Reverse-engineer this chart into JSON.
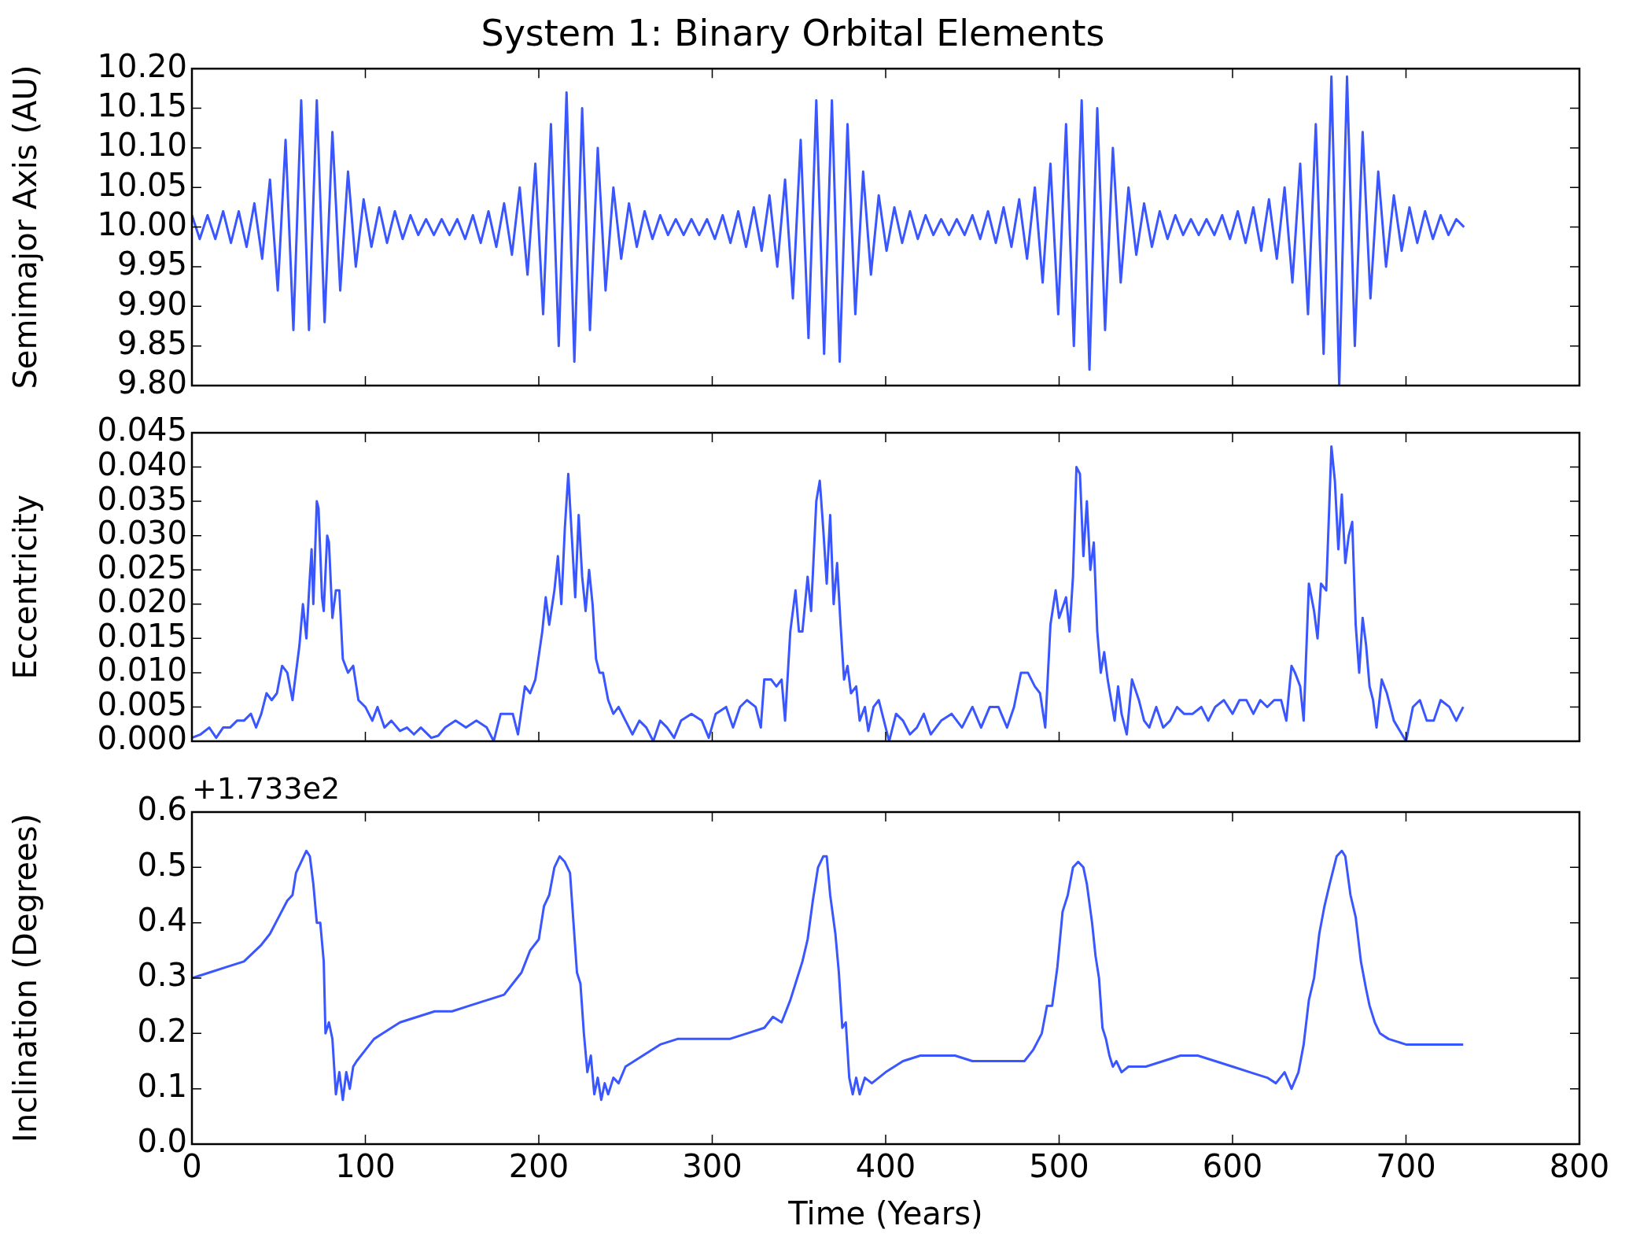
{
  "chart_data": [
    {
      "type": "line",
      "title": "System 1: Binary Orbital Elements",
      "ylabel": "Semimajor Axis (AU)",
      "color": "#3a56ff",
      "tick_labels": "y",
      "xlim": [
        0,
        800
      ],
      "xticks": [
        0,
        100,
        200,
        300,
        400,
        500,
        600,
        700,
        800
      ],
      "ylim": [
        9.8,
        10.2
      ],
      "yticks": [
        {
          "value": 9.8,
          "label": "9.80"
        },
        {
          "value": 9.85,
          "label": "9.85"
        },
        {
          "value": 9.9,
          "label": "9.90"
        },
        {
          "value": 9.95,
          "label": "9.95"
        },
        {
          "value": 10,
          "label": "10.00"
        },
        {
          "value": 10.05,
          "label": "10.05"
        },
        {
          "value": 10.1,
          "label": "10.10"
        },
        {
          "value": 10.15,
          "label": "10.15"
        },
        {
          "value": 10.2,
          "label": "10.20"
        }
      ],
      "x": [
        0,
        4.5,
        9,
        13.5,
        18,
        22.5,
        27,
        31.5,
        36,
        40.5,
        45,
        49.5,
        54,
        58.5,
        63,
        67.5,
        72,
        76.5,
        81,
        85.5,
        90,
        94.5,
        99,
        103.5,
        108,
        112.5,
        117,
        121.5,
        126,
        130.5,
        135,
        139.5,
        144,
        148.5,
        153,
        157.5,
        162,
        166.5,
        171,
        175.5,
        180,
        184.5,
        189,
        193.5,
        198,
        202.5,
        207,
        211.5,
        216,
        220.5,
        225,
        229.5,
        234,
        238.5,
        243,
        247.5,
        252,
        256.5,
        261,
        265.5,
        270,
        274.5,
        279,
        283.5,
        288,
        292.5,
        297,
        301.5,
        306,
        310.5,
        315,
        319.5,
        324,
        328.5,
        333,
        337.5,
        342,
        346.5,
        351,
        355.5,
        360,
        364.5,
        369,
        373.5,
        378,
        382.5,
        387,
        391.5,
        396,
        400.5,
        405,
        409.5,
        414,
        418.5,
        423,
        427.5,
        432,
        436.5,
        441,
        445.5,
        450,
        454.5,
        459,
        463.5,
        468,
        472.5,
        477,
        481.5,
        486,
        490.5,
        495,
        499.5,
        504,
        508.5,
        513,
        517.5,
        522,
        526.5,
        531,
        535.5,
        540,
        544.5,
        549,
        553.5,
        558,
        562.5,
        567,
        571.5,
        576,
        580.5,
        585,
        589.5,
        594,
        598.5,
        603,
        607.5,
        612,
        616.5,
        621,
        625.5,
        630,
        634.5,
        639,
        643.5,
        648,
        652.5,
        657,
        661.5,
        666,
        670.5,
        675,
        679.5,
        684,
        688.5,
        693,
        697.5,
        702,
        706.5,
        711,
        715.5,
        720,
        724.5,
        729,
        733.5
      ],
      "values": [
        10.015,
        9.985,
        10.015,
        9.985,
        10.02,
        9.98,
        10.02,
        9.975,
        10.03,
        9.96,
        10.06,
        9.92,
        10.11,
        9.87,
        10.16,
        9.87,
        10.16,
        9.88,
        10.12,
        9.92,
        10.07,
        9.95,
        10.035,
        9.975,
        10.025,
        9.98,
        10.02,
        9.985,
        10.015,
        9.99,
        10.01,
        9.99,
        10.01,
        9.99,
        10.01,
        9.985,
        10.015,
        9.98,
        10.02,
        9.975,
        10.03,
        9.965,
        10.05,
        9.94,
        10.08,
        9.89,
        10.13,
        9.85,
        10.17,
        9.83,
        10.15,
        9.87,
        10.1,
        9.92,
        10.05,
        9.96,
        10.03,
        9.975,
        10.02,
        9.985,
        10.015,
        9.99,
        10.01,
        9.99,
        10.01,
        9.99,
        10.01,
        9.985,
        10.015,
        9.98,
        10.02,
        9.975,
        10.025,
        9.97,
        10.04,
        9.95,
        10.06,
        9.91,
        10.11,
        9.86,
        10.16,
        9.84,
        10.16,
        9.83,
        10.13,
        9.89,
        10.07,
        9.94,
        10.04,
        9.97,
        10.025,
        9.98,
        10.02,
        9.985,
        10.015,
        9.99,
        10.01,
        9.99,
        10.01,
        9.99,
        10.015,
        9.985,
        10.02,
        9.98,
        10.025,
        9.975,
        10.035,
        9.96,
        10.05,
        9.93,
        10.08,
        9.89,
        10.13,
        9.85,
        10.16,
        9.82,
        10.15,
        9.87,
        10.1,
        9.93,
        10.05,
        9.965,
        10.03,
        9.975,
        10.02,
        9.985,
        10.015,
        9.99,
        10.01,
        9.99,
        10.01,
        9.99,
        10.015,
        9.985,
        10.02,
        9.98,
        10.025,
        9.97,
        10.035,
        9.96,
        10.05,
        9.93,
        10.08,
        9.89,
        10.13,
        9.84,
        10.19,
        9.8,
        10.19,
        9.85,
        10.12,
        9.91,
        10.07,
        9.95,
        10.04,
        9.97,
        10.025,
        9.98,
        10.02,
        9.985,
        10.015,
        9.99,
        10.01,
        10
      ]
    },
    {
      "type": "line",
      "ylabel": "Eccentricity",
      "color": "#3a56ff",
      "tick_labels": "y",
      "xlim": [
        0,
        800
      ],
      "xticks": [
        0,
        100,
        200,
        300,
        400,
        500,
        600,
        700,
        800
      ],
      "ylim": [
        0,
        0.045
      ],
      "yticks": [
        {
          "value": 0,
          "label": "0.000"
        },
        {
          "value": 0.005,
          "label": "0.005"
        },
        {
          "value": 0.01,
          "label": "0.010"
        },
        {
          "value": 0.015,
          "label": "0.015"
        },
        {
          "value": 0.02,
          "label": "0.020"
        },
        {
          "value": 0.025,
          "label": "0.025"
        },
        {
          "value": 0.03,
          "label": "0.030"
        },
        {
          "value": 0.035,
          "label": "0.035"
        },
        {
          "value": 0.04,
          "label": "0.040"
        },
        {
          "value": 0.045,
          "label": "0.045"
        }
      ],
      "x": [
        0,
        5,
        10,
        14,
        18,
        22,
        26,
        30,
        34,
        37,
        40,
        43,
        46,
        49,
        52,
        55,
        58,
        62,
        64,
        66,
        68,
        69,
        70,
        72,
        73,
        75,
        76,
        78,
        79,
        81,
        83,
        85,
        87,
        90,
        93,
        96,
        100,
        104,
        107,
        111,
        115,
        120,
        124,
        128,
        132,
        138,
        142,
        146,
        152,
        158,
        164,
        170,
        174,
        178,
        185,
        188,
        192,
        195,
        198,
        202,
        204,
        206,
        209,
        211,
        213,
        215,
        217,
        219,
        221,
        223,
        225,
        227,
        229,
        231,
        233,
        235,
        237,
        240,
        243,
        246,
        250,
        254,
        258,
        262,
        266,
        270,
        274,
        278,
        282,
        288,
        294,
        298,
        302,
        308,
        312,
        316,
        320,
        325,
        328,
        330,
        334,
        337,
        340,
        342,
        345,
        348,
        350,
        352,
        355,
        357,
        360,
        362,
        364,
        366,
        368,
        370,
        372,
        374,
        376,
        378,
        380,
        383,
        385,
        388,
        390,
        393,
        396,
        400,
        402,
        406,
        410,
        414,
        418,
        422,
        426,
        432,
        438,
        444,
        450,
        455,
        460,
        465,
        470,
        474,
        478,
        482,
        486,
        489,
        492,
        495,
        498,
        500,
        504,
        506,
        508,
        510,
        512,
        514,
        516,
        518,
        520,
        522,
        524,
        526,
        528,
        530,
        532,
        534,
        536,
        539,
        542,
        546,
        549,
        552,
        556,
        560,
        564,
        568,
        572,
        577,
        582,
        586,
        590,
        595,
        600,
        604,
        608,
        612,
        616,
        620,
        624,
        628,
        631,
        634,
        636,
        639,
        641,
        644,
        647,
        649,
        651,
        654,
        657,
        659,
        661,
        663,
        665,
        667,
        669,
        671,
        673,
        675,
        677,
        679,
        681,
        683,
        686,
        689,
        693,
        700,
        704,
        708,
        712,
        716,
        720,
        725,
        729,
        733
      ],
      "values": [
        0.0005,
        0.001,
        0.002,
        0.0005,
        0.002,
        0.002,
        0.003,
        0.003,
        0.004,
        0.002,
        0.004,
        0.007,
        0.006,
        0.007,
        0.011,
        0.01,
        0.006,
        0.014,
        0.02,
        0.015,
        0.024,
        0.028,
        0.02,
        0.035,
        0.034,
        0.021,
        0.019,
        0.03,
        0.029,
        0.018,
        0.022,
        0.022,
        0.012,
        0.01,
        0.011,
        0.006,
        0.005,
        0.003,
        0.005,
        0.002,
        0.003,
        0.0015,
        0.002,
        0.001,
        0.002,
        0.0005,
        0.0008,
        0.002,
        0.003,
        0.002,
        0.003,
        0.002,
        0,
        0.004,
        0.004,
        0.001,
        0.008,
        0.007,
        0.009,
        0.016,
        0.021,
        0.017,
        0.022,
        0.027,
        0.02,
        0.031,
        0.039,
        0.03,
        0.021,
        0.033,
        0.024,
        0.019,
        0.025,
        0.02,
        0.012,
        0.01,
        0.01,
        0.006,
        0.004,
        0.005,
        0.003,
        0.001,
        0.003,
        0.002,
        0,
        0.003,
        0.002,
        0.0005,
        0.003,
        0.004,
        0.003,
        0.0005,
        0.004,
        0.005,
        0.002,
        0.005,
        0.006,
        0.005,
        0.002,
        0.009,
        0.009,
        0.008,
        0.009,
        0.003,
        0.016,
        0.022,
        0.016,
        0.016,
        0.024,
        0.019,
        0.035,
        0.038,
        0.031,
        0.023,
        0.033,
        0.02,
        0.026,
        0.017,
        0.009,
        0.011,
        0.007,
        0.008,
        0.003,
        0.005,
        0.0015,
        0.005,
        0.006,
        0.002,
        0,
        0.004,
        0.003,
        0.001,
        0.002,
        0.004,
        0.001,
        0.003,
        0.004,
        0.002,
        0.005,
        0.002,
        0.005,
        0.005,
        0.002,
        0.005,
        0.01,
        0.01,
        0.008,
        0.007,
        0.002,
        0.017,
        0.022,
        0.018,
        0.021,
        0.016,
        0.024,
        0.04,
        0.039,
        0.027,
        0.035,
        0.025,
        0.029,
        0.016,
        0.01,
        0.013,
        0.009,
        0.006,
        0.003,
        0.008,
        0.004,
        0.001,
        0.009,
        0.006,
        0.003,
        0.002,
        0.005,
        0.002,
        0.003,
        0.005,
        0.004,
        0.004,
        0.005,
        0.003,
        0.005,
        0.006,
        0.004,
        0.006,
        0.006,
        0.004,
        0.006,
        0.005,
        0.006,
        0.006,
        0.003,
        0.011,
        0.01,
        0.008,
        0.003,
        0.023,
        0.019,
        0.015,
        0.023,
        0.022,
        0.043,
        0.038,
        0.028,
        0.036,
        0.026,
        0.03,
        0.032,
        0.017,
        0.01,
        0.018,
        0.014,
        0.008,
        0.006,
        0.002,
        0.009,
        0.007,
        0.003,
        0,
        0.005,
        0.006,
        0.003,
        0.003,
        0.006,
        0.005,
        0.003,
        0.005
      ]
    },
    {
      "type": "line",
      "xlabel": "Time (Years)",
      "ylabel": "Inclination (Degrees)",
      "color": "#3a56ff",
      "annotations": [
        "+1.733e2"
      ],
      "xlim": [
        0,
        800
      ],
      "xticks": [
        0,
        100,
        200,
        300,
        400,
        500,
        600,
        700,
        800
      ],
      "ylim": [
        0,
        0.6
      ],
      "yticks": [
        {
          "value": 0,
          "label": "0.0"
        },
        {
          "value": 0.1,
          "label": "0.1"
        },
        {
          "value": 0.2,
          "label": "0.2"
        },
        {
          "value": 0.3,
          "label": "0.3"
        },
        {
          "value": 0.4,
          "label": "0.4"
        },
        {
          "value": 0.5,
          "label": "0.5"
        },
        {
          "value": 0.6,
          "label": "0.6"
        }
      ],
      "x": [
        0,
        10,
        20,
        30,
        40,
        45,
        50,
        55,
        58,
        60,
        63,
        66,
        68,
        70,
        72,
        74,
        76,
        77,
        79,
        81,
        83,
        85,
        87,
        89,
        91,
        93,
        95,
        100,
        105,
        110,
        120,
        130,
        140,
        150,
        160,
        170,
        180,
        185,
        190,
        195,
        200,
        203,
        206,
        209,
        212,
        215,
        218,
        220,
        222,
        224,
        226,
        228,
        230,
        232,
        234,
        236,
        238,
        240,
        243,
        246,
        250,
        255,
        260,
        270,
        280,
        290,
        300,
        310,
        320,
        330,
        335,
        340,
        345,
        348,
        352,
        355,
        358,
        361,
        364,
        366,
        368,
        371,
        373,
        375,
        377,
        379,
        381,
        383,
        385,
        388,
        392,
        396,
        400,
        410,
        420,
        430,
        440,
        450,
        460,
        470,
        480,
        485,
        490,
        493,
        496,
        499,
        502,
        505,
        508,
        511,
        514,
        516,
        519,
        521,
        523,
        525,
        527,
        529,
        531,
        533,
        536,
        540,
        550,
        560,
        570,
        580,
        590,
        600,
        610,
        620,
        625,
        630,
        634,
        638,
        641,
        644,
        647,
        650,
        653,
        656,
        660,
        663,
        665,
        668,
        671,
        674,
        677,
        679,
        682,
        685,
        690,
        700,
        710,
        720,
        733
      ],
      "values": [
        0.3,
        0.31,
        0.32,
        0.33,
        0.36,
        0.38,
        0.41,
        0.44,
        0.45,
        0.49,
        0.51,
        0.53,
        0.52,
        0.47,
        0.4,
        0.4,
        0.33,
        0.2,
        0.22,
        0.19,
        0.09,
        0.13,
        0.08,
        0.13,
        0.1,
        0.14,
        0.15,
        0.17,
        0.19,
        0.2,
        0.22,
        0.23,
        0.24,
        0.24,
        0.25,
        0.26,
        0.27,
        0.29,
        0.31,
        0.35,
        0.37,
        0.43,
        0.45,
        0.5,
        0.52,
        0.51,
        0.49,
        0.4,
        0.31,
        0.29,
        0.2,
        0.13,
        0.16,
        0.09,
        0.12,
        0.08,
        0.11,
        0.09,
        0.12,
        0.11,
        0.14,
        0.15,
        0.16,
        0.18,
        0.19,
        0.19,
        0.19,
        0.19,
        0.2,
        0.21,
        0.23,
        0.22,
        0.26,
        0.29,
        0.33,
        0.37,
        0.44,
        0.5,
        0.52,
        0.52,
        0.45,
        0.38,
        0.31,
        0.21,
        0.22,
        0.12,
        0.09,
        0.12,
        0.09,
        0.12,
        0.11,
        0.12,
        0.13,
        0.15,
        0.16,
        0.16,
        0.16,
        0.15,
        0.15,
        0.15,
        0.15,
        0.17,
        0.2,
        0.25,
        0.25,
        0.32,
        0.42,
        0.45,
        0.5,
        0.51,
        0.5,
        0.47,
        0.4,
        0.34,
        0.3,
        0.21,
        0.19,
        0.16,
        0.14,
        0.15,
        0.13,
        0.14,
        0.14,
        0.15,
        0.16,
        0.16,
        0.15,
        0.14,
        0.13,
        0.12,
        0.11,
        0.13,
        0.1,
        0.13,
        0.18,
        0.26,
        0.3,
        0.38,
        0.43,
        0.47,
        0.52,
        0.53,
        0.52,
        0.45,
        0.41,
        0.33,
        0.28,
        0.25,
        0.22,
        0.2,
        0.19,
        0.18,
        0.18,
        0.18,
        0.18
      ]
    }
  ]
}
